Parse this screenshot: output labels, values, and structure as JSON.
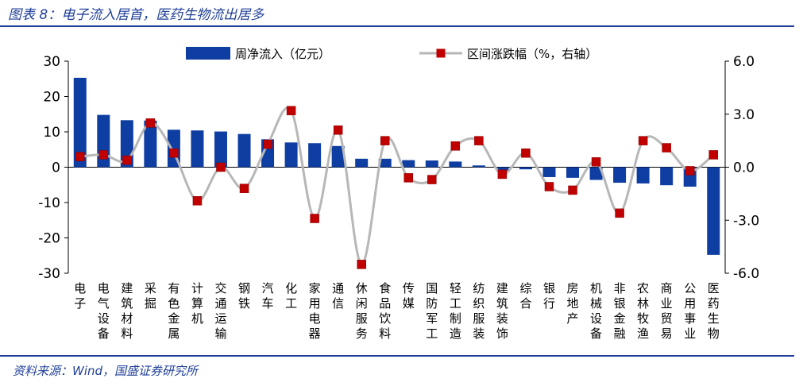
{
  "figure_title": "图表 8：电子流入居首，医药生物流出居多",
  "source": "资料来源：Wind，国盛证券研究所",
  "colors": {
    "bar": "#0f3ea3",
    "line": "#b7b7b7",
    "marker": "#c00000",
    "title": "#1f3f97"
  },
  "chart_data": {
    "type": "bar",
    "title": "",
    "xlabel": "",
    "ylabel": "",
    "ylim": [
      -30,
      30
    ],
    "y_ticks": [
      "30",
      "20",
      "10",
      "0",
      "-10",
      "-20",
      "-30"
    ],
    "y2lim": [
      -6.0,
      6.0
    ],
    "y2_ticks": [
      "6.0",
      "3.0",
      "0.0",
      "-3.0",
      "-6.0"
    ],
    "legend_position": "top",
    "categories": [
      "电子",
      "电气设备",
      "建筑材料",
      "采掘",
      "有色金属",
      "计算机",
      "交通运输",
      "钢铁",
      "汽车",
      "化工",
      "家用电器",
      "通信",
      "休闲服务",
      "食品饮料",
      "传媒",
      "国防军工",
      "轻工制造",
      "纺织服装",
      "建筑装饰",
      "综合",
      "银行",
      "房地产",
      "机械设备",
      "非银金融",
      "农林牧渔",
      "商业贸易",
      "公用事业",
      "医药生物"
    ],
    "series": [
      {
        "name": "周净流入（亿元）",
        "type": "bar",
        "axis": "left",
        "values": [
          25.3,
          14.8,
          13.3,
          13.2,
          10.6,
          10.4,
          10.1,
          9.4,
          7.9,
          7.0,
          6.8,
          6.0,
          2.4,
          2.4,
          2.0,
          1.9,
          1.6,
          0.5,
          -1.1,
          -0.6,
          -2.8,
          -3.0,
          -3.6,
          -4.4,
          -4.6,
          -5.1,
          -5.5,
          -24.8
        ]
      },
      {
        "name": "区间涨跌幅（%，右轴）",
        "type": "line",
        "axis": "right",
        "values": [
          0.6,
          0.7,
          0.4,
          2.5,
          0.8,
          -1.9,
          0.0,
          -1.2,
          1.3,
          3.2,
          -2.9,
          2.1,
          -5.5,
          1.5,
          -0.6,
          -0.7,
          1.2,
          1.5,
          -0.4,
          0.8,
          -1.1,
          -1.3,
          0.3,
          -2.6,
          1.5,
          1.1,
          -0.2,
          0.7
        ]
      }
    ]
  }
}
